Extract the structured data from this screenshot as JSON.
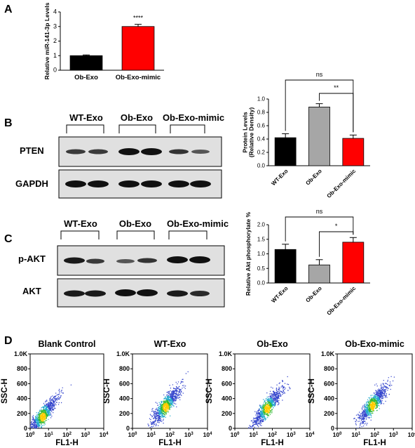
{
  "panels": {
    "A": {
      "letter": "A"
    },
    "B": {
      "letter": "B",
      "groups": [
        "WT-Exo",
        "Ob-Exo",
        "Ob-Exo-mimic"
      ],
      "rows": [
        "PTEN",
        "GAPDH"
      ]
    },
    "C": {
      "letter": "C",
      "groups": [
        "WT-Exo",
        "Ob-Exo",
        "Ob-Exo-mimic"
      ],
      "rows": [
        "p-AKT",
        "AKT"
      ]
    },
    "D": {
      "letter": "D"
    }
  },
  "colors": {
    "black": "#000000",
    "gray": "#a6a6a6",
    "red": "#ff0000"
  },
  "chart_data": [
    {
      "type": "bar",
      "panel": "A",
      "categories": [
        "Ob-Exo",
        "Ob-Exo-mimic"
      ],
      "values": [
        1.0,
        3.0
      ],
      "errors": [
        0.05,
        0.15
      ],
      "colors": [
        "#000000",
        "#ff0000"
      ],
      "ylabel": "Relative miR-141-3p Levels",
      "ylim": [
        0,
        4
      ],
      "yticks": [
        "0",
        "1",
        "2",
        "3",
        "4"
      ],
      "significance": [
        {
          "over": 1,
          "label": "****"
        }
      ]
    },
    {
      "type": "bar",
      "panel": "B",
      "categories": [
        "WT-Exo",
        "Ob-Exo",
        "Ob-Exo-mimic"
      ],
      "values": [
        0.42,
        0.88,
        0.41
      ],
      "errors": [
        0.06,
        0.05,
        0.05
      ],
      "colors": [
        "#000000",
        "#a6a6a6",
        "#ff0000"
      ],
      "ylabel": "Protein Levels\n(Relative Density)",
      "ylim": [
        0,
        1.0
      ],
      "yticks": [
        "0.0",
        "0.2",
        "0.4",
        "0.6",
        "0.8",
        "1.0"
      ],
      "significance": [
        {
          "from": 0,
          "to": 2,
          "label": "ns"
        },
        {
          "from": 1,
          "to": 2,
          "label": "**"
        }
      ]
    },
    {
      "type": "bar",
      "panel": "C",
      "categories": [
        "WT-Exo",
        "Ob-Exo",
        "Ob-Exo-mimic"
      ],
      "values": [
        1.15,
        0.62,
        1.4
      ],
      "errors": [
        0.18,
        0.18,
        0.16
      ],
      "colors": [
        "#000000",
        "#a6a6a6",
        "#ff0000"
      ],
      "ylabel": "Relative Akt phosphorylate %",
      "ylim": [
        0,
        2.0
      ],
      "yticks": [
        "0.0",
        "0.5",
        "1.0",
        "1.5",
        "2.0"
      ],
      "significance": [
        {
          "from": 0,
          "to": 2,
          "label": "ns"
        },
        {
          "from": 1,
          "to": 2,
          "label": "*"
        }
      ]
    },
    {
      "type": "scatter",
      "panel": "D",
      "plots": [
        {
          "title": "Blank Control",
          "center": [
            5,
            150
          ]
        },
        {
          "title": "WT-Exo",
          "center": [
            60,
            280
          ]
        },
        {
          "title": "Ob-Exo",
          "center": [
            55,
            260
          ]
        },
        {
          "title": "Ob-Exo-mimic",
          "center": [
            80,
            300
          ]
        }
      ],
      "xlabel": "FL1-H",
      "ylabel": "SSC-H",
      "xlim": [
        1,
        10000
      ],
      "xscale": "log",
      "ylim": [
        0,
        1000
      ],
      "xticks": [
        {
          "base": "10",
          "exp": "0"
        },
        {
          "base": "10",
          "exp": "1"
        },
        {
          "base": "10",
          "exp": "2"
        },
        {
          "base": "10",
          "exp": "3"
        },
        {
          "base": "10",
          "exp": "4"
        }
      ],
      "yticks": [
        "0",
        "200",
        "400",
        "600",
        "800",
        "1.0K"
      ]
    }
  ]
}
